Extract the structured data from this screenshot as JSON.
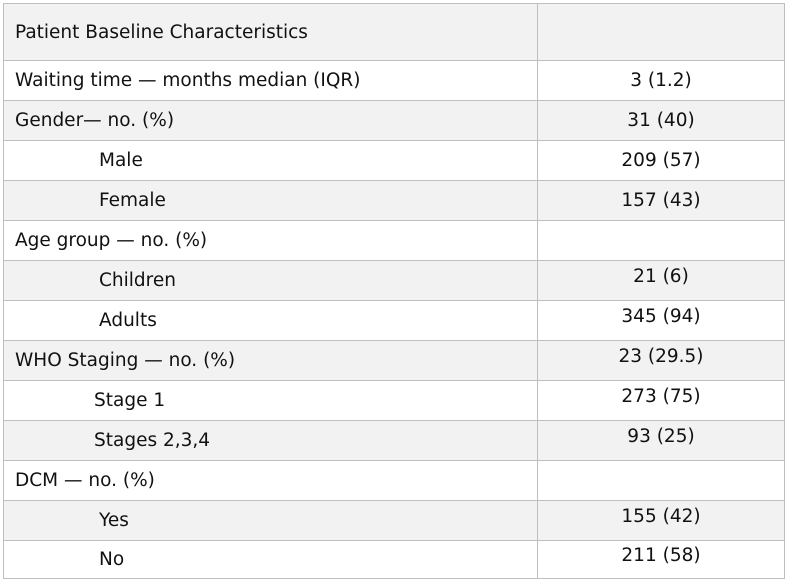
{
  "table": {
    "header": {
      "label": "Patient Baseline Characteristics",
      "value": ""
    },
    "rows": [
      {
        "label": "Waiting time — months median (IQR)",
        "value": "3 (1.2)"
      },
      {
        "label": "Gender— no. (%)",
        "value": "31 (40)"
      },
      {
        "label": "Male",
        "value": "209 (57)"
      },
      {
        "label": "Female",
        "value": "157 (43)"
      },
      {
        "label": "Age group — no. (%)",
        "value": ""
      },
      {
        "label": "Children",
        "value": "21 (6)"
      },
      {
        "label": "Adults",
        "value": "345 (94)"
      },
      {
        "label": "WHO Staging — no. (%)",
        "value": "23 (29.5)"
      },
      {
        "label": "Stage 1",
        "value": "273 (75)"
      },
      {
        "label": "Stages 2,3,4",
        "value": "93 (25)"
      },
      {
        "label": "DCM — no. (%)",
        "value": ""
      },
      {
        "label": "Yes",
        "value": "155 (42)"
      },
      {
        "label": "No",
        "value": "211 (58)"
      }
    ]
  },
  "colors": {
    "shaded_row": "#f2f2f2",
    "border": "#bfbfbf",
    "text": "#111111"
  }
}
